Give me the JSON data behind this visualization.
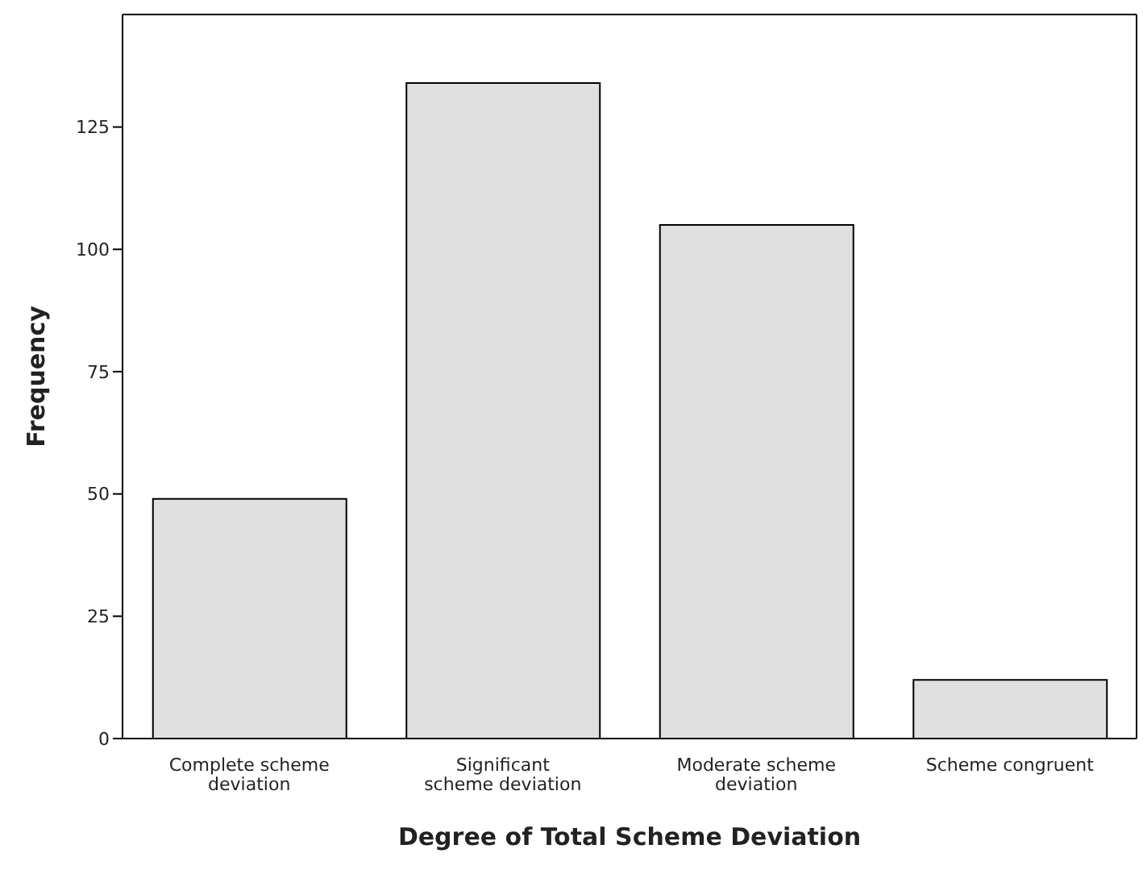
{
  "chart_data": {
    "type": "bar",
    "xlabel": "Degree of Total Scheme Deviation",
    "ylabel": "Frequency",
    "categories": [
      "Complete scheme deviation",
      "Significant scheme deviation",
      "Moderate scheme deviation",
      "Scheme congruent"
    ],
    "values": [
      49,
      134,
      105,
      12
    ],
    "color": "#e0e0e0",
    "ylim": [
      0,
      148
    ],
    "yticks": [
      0,
      25,
      50,
      75,
      100,
      125
    ],
    "grid": false,
    "legend": false
  }
}
